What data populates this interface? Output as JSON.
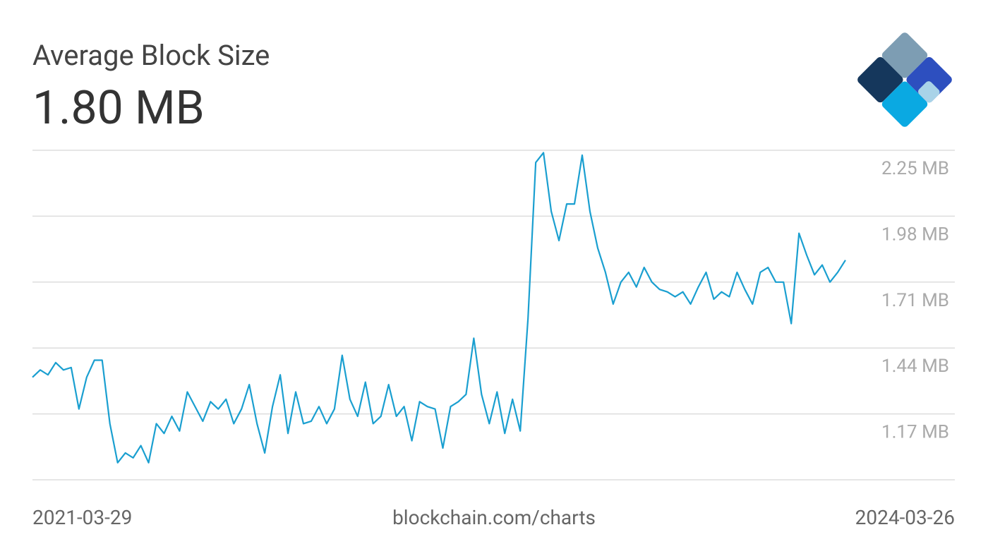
{
  "chart_data": {
    "type": "line",
    "title": "Average Block Size",
    "subtitle": "1.80 MB",
    "source": "blockchain.com/charts",
    "categories": [
      "2021-03-29",
      null,
      null,
      null,
      null,
      null,
      null,
      null,
      null,
      null,
      null,
      null,
      null,
      null,
      null,
      null,
      null,
      null,
      null,
      null,
      null,
      null,
      null,
      null,
      null,
      null,
      null,
      null,
      null,
      null,
      null,
      null,
      null,
      null,
      null,
      null,
      null,
      null,
      null,
      null,
      null,
      null,
      null,
      null,
      null,
      null,
      null,
      null,
      null,
      null,
      null,
      null,
      null,
      null,
      null,
      null,
      null,
      null,
      null,
      null,
      null,
      null,
      null,
      null,
      null,
      null,
      null,
      null,
      null,
      null,
      null,
      null,
      null,
      null,
      null,
      null,
      null,
      null,
      null,
      null,
      null,
      null,
      null,
      null,
      null,
      null,
      null,
      null,
      null,
      null,
      null,
      null,
      null,
      null,
      null,
      null,
      null,
      null,
      null,
      null,
      null,
      null,
      null,
      null,
      null,
      "2024-03-26"
    ],
    "values": [
      1.32,
      1.35,
      1.33,
      1.38,
      1.35,
      1.36,
      1.19,
      1.32,
      1.39,
      1.39,
      1.13,
      0.97,
      1.01,
      0.99,
      1.04,
      0.97,
      1.13,
      1.09,
      1.16,
      1.1,
      1.26,
      1.2,
      1.14,
      1.22,
      1.19,
      1.23,
      1.13,
      1.19,
      1.29,
      1.13,
      1.01,
      1.2,
      1.33,
      1.09,
      1.26,
      1.13,
      1.14,
      1.2,
      1.13,
      1.19,
      1.41,
      1.23,
      1.16,
      1.3,
      1.13,
      1.16,
      1.29,
      1.16,
      1.2,
      1.06,
      1.22,
      1.2,
      1.19,
      1.03,
      1.2,
      1.22,
      1.25,
      1.48,
      1.25,
      1.13,
      1.26,
      1.09,
      1.23,
      1.1,
      1.56,
      2.2,
      2.24,
      2.0,
      1.88,
      2.03,
      2.03,
      2.23,
      2.0,
      1.85,
      1.75,
      1.62,
      1.71,
      1.75,
      1.69,
      1.77,
      1.71,
      1.68,
      1.67,
      1.65,
      1.67,
      1.62,
      1.69,
      1.75,
      1.64,
      1.67,
      1.65,
      1.75,
      1.68,
      1.62,
      1.75,
      1.77,
      1.71,
      1.71,
      1.54,
      1.91,
      1.82,
      1.74,
      1.78,
      1.71,
      1.75,
      1.8
    ],
    "color": "#1a9fd0",
    "ylim": [
      0.9,
      2.25
    ],
    "yticks": [
      {
        "value": 2.25,
        "label": "2.25 MB"
      },
      {
        "value": 1.98,
        "label": "1.98 MB"
      },
      {
        "value": 1.71,
        "label": "1.71 MB"
      },
      {
        "value": 1.44,
        "label": "1.44 MB"
      },
      {
        "value": 1.17,
        "label": "1.17 MB"
      }
    ],
    "grid": true
  }
}
